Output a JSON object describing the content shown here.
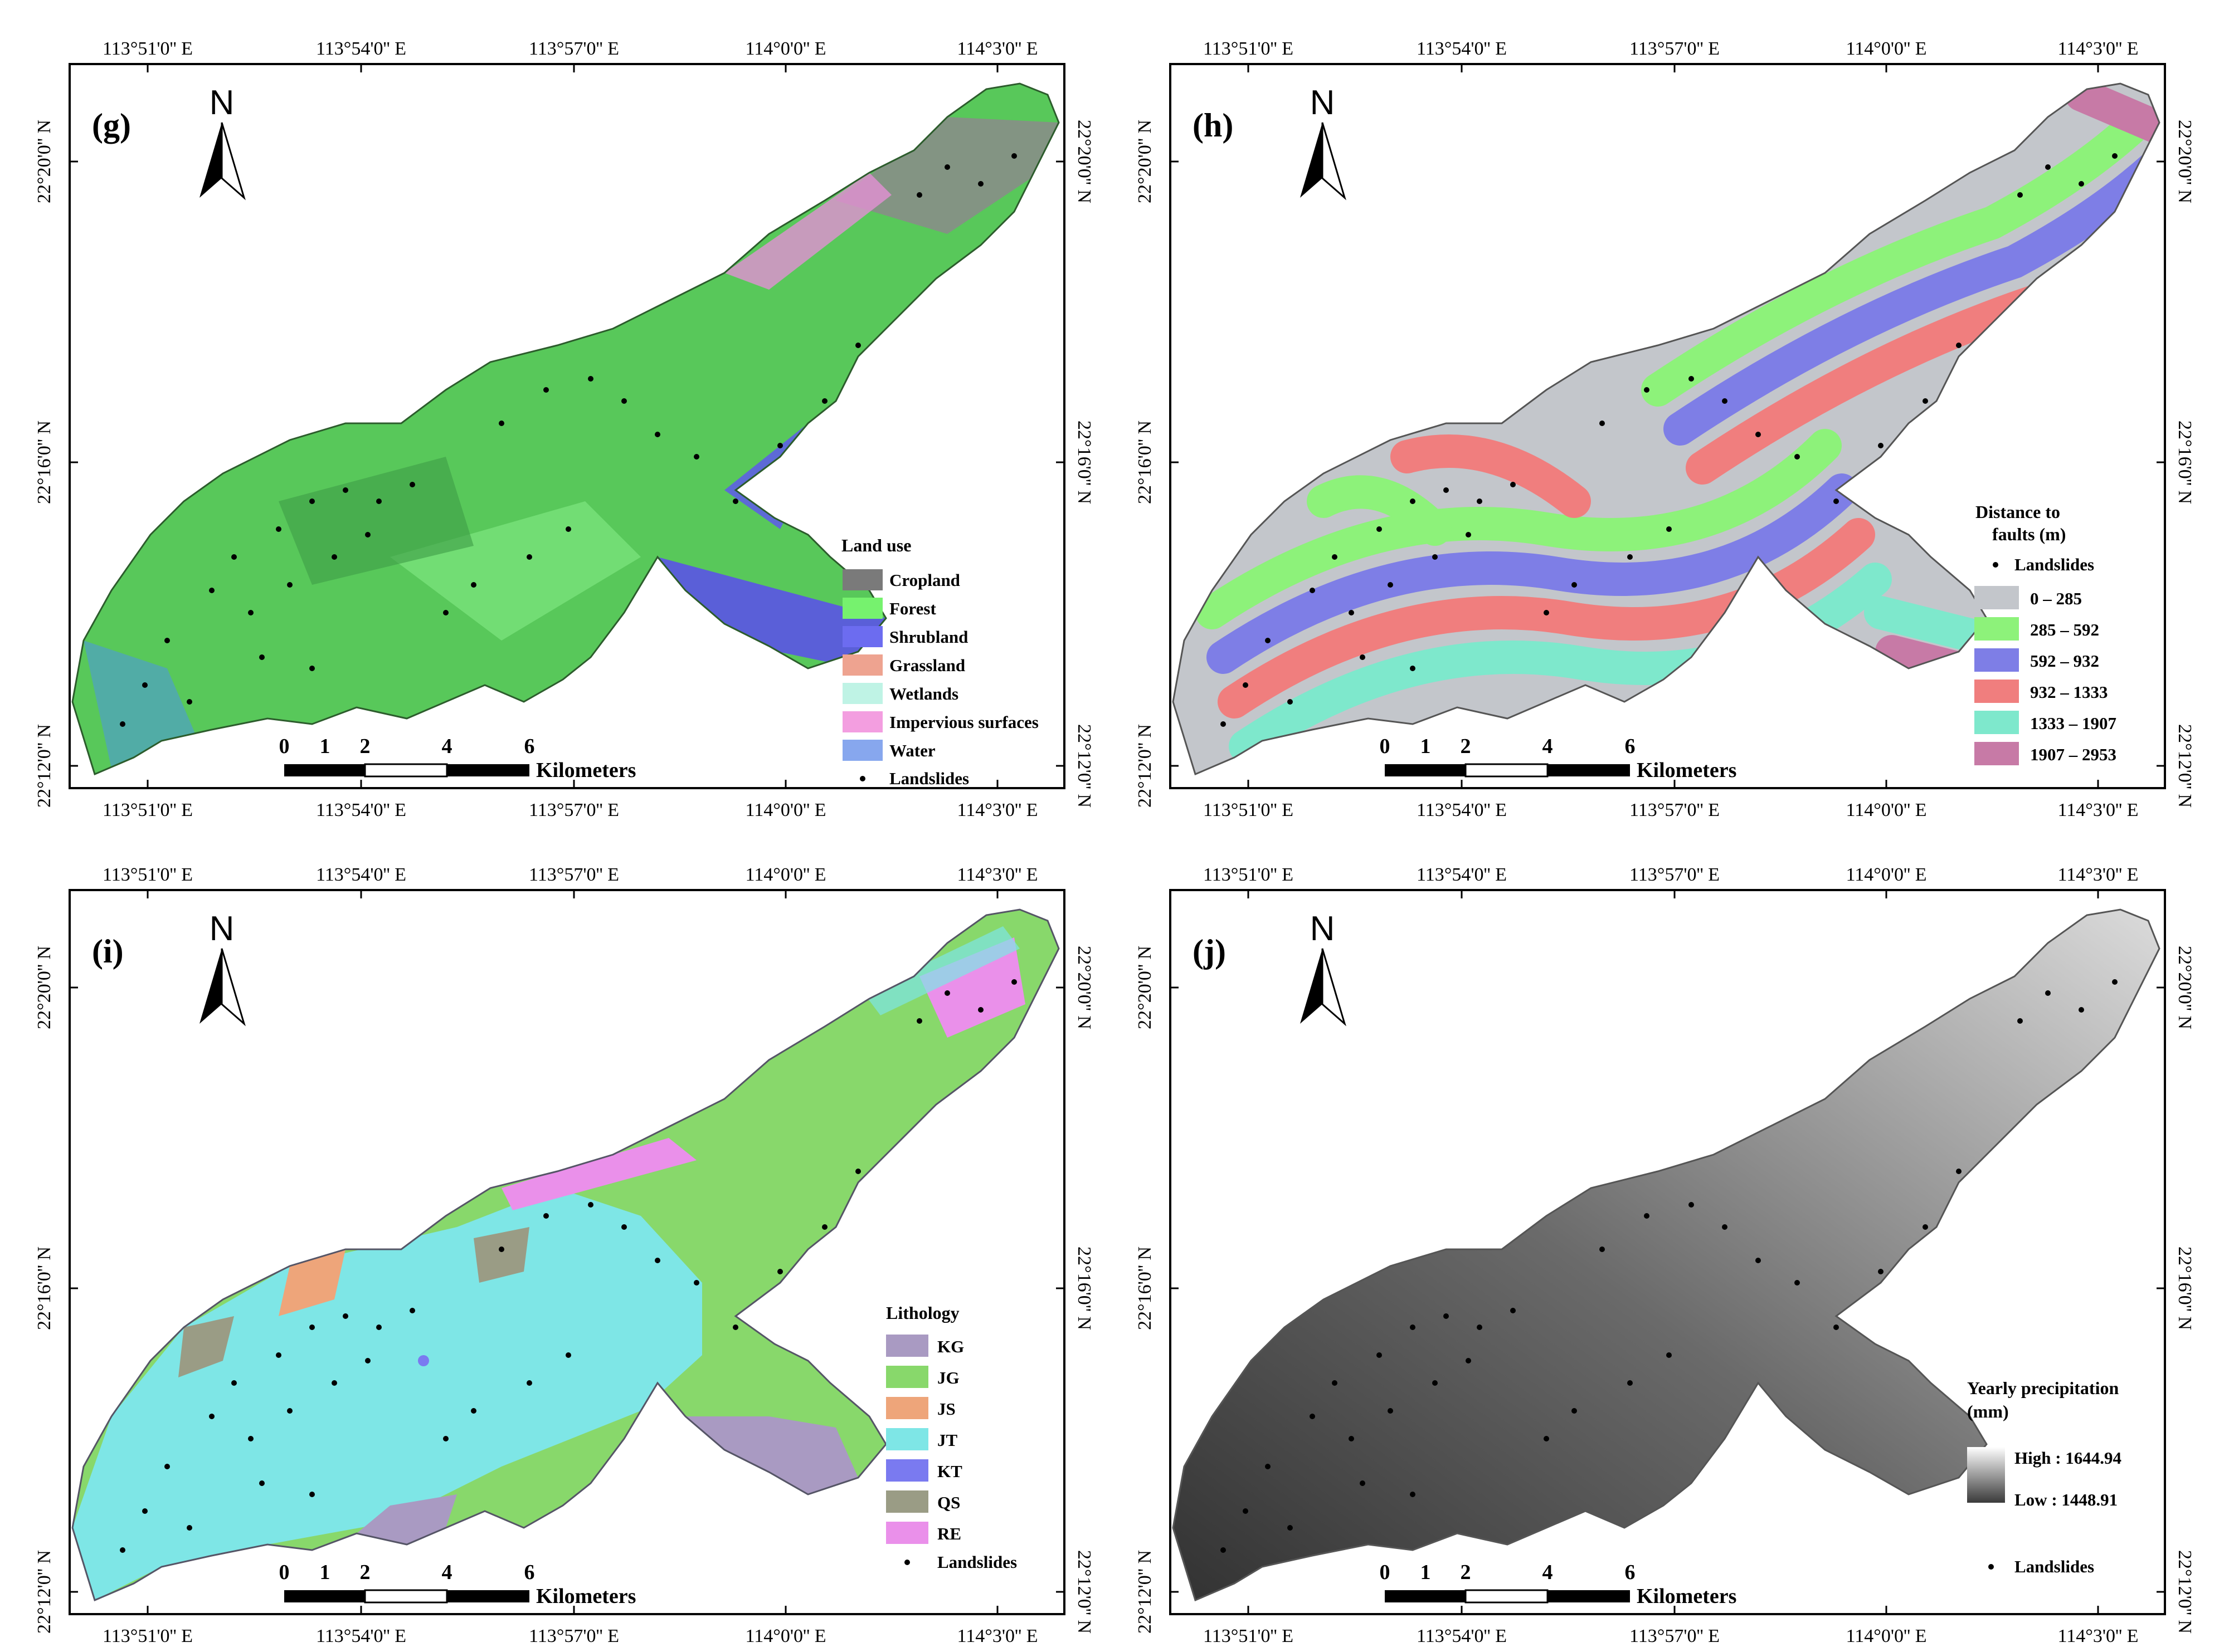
{
  "longitude_labels": [
    "113°51'0'' E",
    "113°54'0'' E",
    "113°57'0'' E",
    "114°0'0'' E",
    "114°3'0'' E"
  ],
  "latitude_labels": [
    "22°20'0'' N",
    "22°16'0'' N",
    "22°12'0'' N"
  ],
  "north_label": "N",
  "scale_bar": {
    "ticks": [
      "0",
      "1",
      "2",
      "4",
      "6"
    ],
    "unit": "Kilometers"
  },
  "landslides_label": "Landslides",
  "panels": [
    {
      "id": "g",
      "label": "(g)",
      "legend_title": "Land use",
      "legend_items": [
        {
          "label": "Cropland",
          "color": "#7a7a7a"
        },
        {
          "label": "Forest",
          "color": "#76f26e"
        },
        {
          "label": "Shrubland",
          "color": "#6c6cf0"
        },
        {
          "label": "Grassland",
          "color": "#eea390"
        },
        {
          "label": "Wetlands",
          "color": "#bff3e5"
        },
        {
          "label": "Impervious surfaces",
          "color": "#f39ee0"
        },
        {
          "label": "Water",
          "color": "#87a7ee"
        }
      ]
    },
    {
      "id": "h",
      "label": "(h)",
      "legend_title_lines": [
        "Distance to",
        "faults (m)"
      ],
      "legend_items": [
        {
          "label": "0 – 285",
          "color": "#c3c6cb"
        },
        {
          "label": "285 – 592",
          "color": "#8df27a"
        },
        {
          "label": "592 – 932",
          "color": "#7e7ee6"
        },
        {
          "label": "932 – 1333",
          "color": "#f07e7e"
        },
        {
          "label": "1333 – 1907",
          "color": "#7ee8cc"
        },
        {
          "label": "1907 – 2953",
          "color": "#c77aa6"
        }
      ]
    },
    {
      "id": "i",
      "label": "(i)",
      "legend_title": "Lithology",
      "legend_items": [
        {
          "label": "KG",
          "color": "#a99ac2"
        },
        {
          "label": "JG",
          "color": "#88d86b"
        },
        {
          "label": "JS",
          "color": "#eea57a"
        },
        {
          "label": "JT",
          "color": "#7ee6e6"
        },
        {
          "label": "KT",
          "color": "#7a7af0"
        },
        {
          "label": "QS",
          "color": "#9a9c85"
        },
        {
          "label": "RE",
          "color": "#ea90ea"
        }
      ]
    },
    {
      "id": "j",
      "label": "(j)",
      "legend_title_lines": [
        "Yearly precipitation",
        "(mm)"
      ],
      "high_label": "High : 1644.94",
      "low_label": "Low : 1448.91"
    }
  ]
}
